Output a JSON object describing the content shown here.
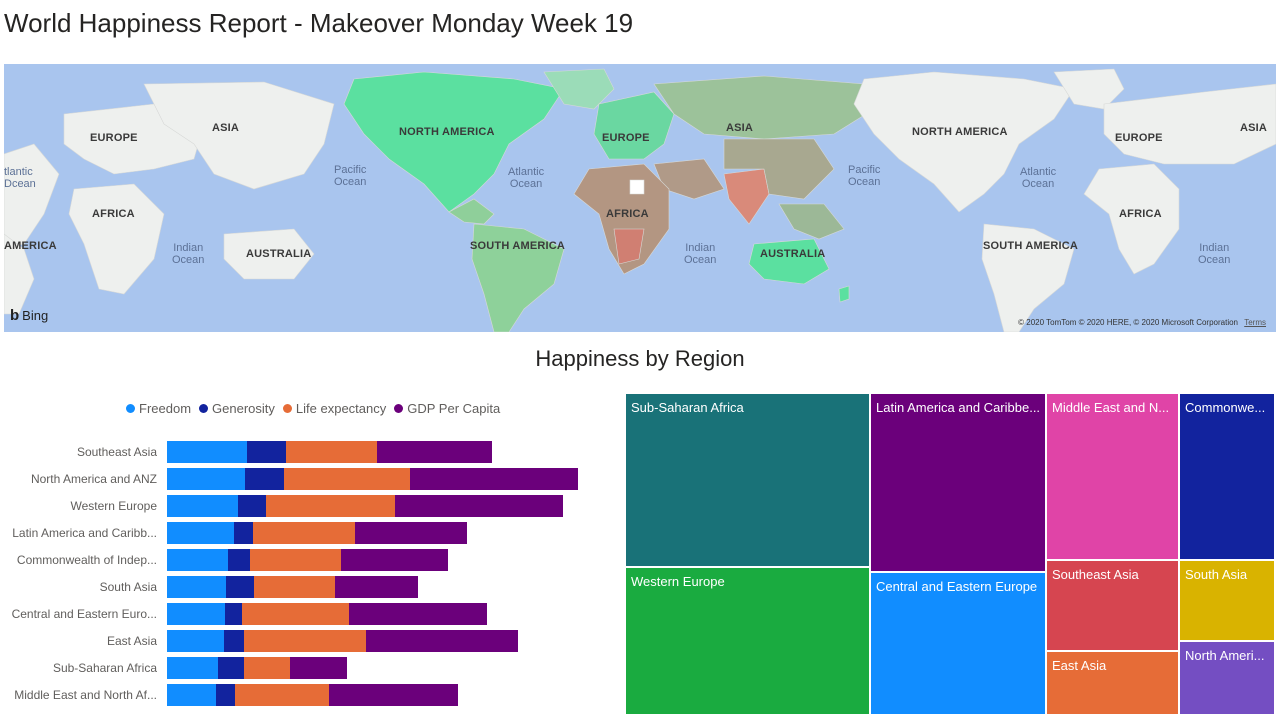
{
  "report": {
    "title": "World Happiness Report - Makeover Monday Week 19"
  },
  "map": {
    "labels": {
      "europe_left": "EUROPE",
      "asia_left": "ASIA",
      "africa_left": "AFRICA",
      "america_left": "AMERICA",
      "australia_left": "AUSTRALIA",
      "north_america": "NORTH AMERICA",
      "europe_center": "EUROPE",
      "asia_center": "ASIA",
      "africa_center": "AFRICA",
      "south_america": "SOUTH AMERICA",
      "australia_center": "AUSTRALIA",
      "north_america_right": "NORTH AMERICA",
      "europe_right": "EUROPE",
      "asia_right": "ASIA",
      "africa_right": "AFRICA",
      "south_america_right": "SOUTH AMERICA"
    },
    "oceans": {
      "atlantic_left_1": "tlantic",
      "atlantic_left_2": "Dcean",
      "pacific_left_1": "Pacific",
      "pacific_left_2": "Ocean",
      "indian_left_1": "Indian",
      "indian_left_2": "Ocean",
      "atlantic_center_1": "Atlantic",
      "atlantic_center_2": "Ocean",
      "indian_center_1": "Indian",
      "indian_center_2": "Ocean",
      "pacific_right_1": "Pacific",
      "pacific_right_2": "Ocean",
      "atlantic_right_1": "Atlantic",
      "atlantic_right_2": "Ocean",
      "indian_right_1": "Indian",
      "indian_right_2": "Ocean"
    },
    "brand": "Bing",
    "attribution": "© 2020 TomTom © 2020 HERE, © 2020 Microsoft Corporation",
    "terms": "Terms",
    "colors": {
      "ocean": "#a9c5ee",
      "land": "#eef0ee",
      "happy": "#5be0a0",
      "mid": "#9cc29a",
      "unhappy": "#d98a7a"
    }
  },
  "section": {
    "title": "Happiness by Region"
  },
  "chart_data": [
    {
      "type": "bar",
      "orientation": "horizontal",
      "stacked": true,
      "title": "",
      "legend": {
        "placement": "top"
      },
      "series": [
        {
          "name": "Freedom",
          "color": "#118dff"
        },
        {
          "name": "Generosity",
          "color": "#12239e"
        },
        {
          "name": "Life expectancy",
          "color": "#e66c37"
        },
        {
          "name": "GDP Per Capita",
          "color": "#6b007b"
        }
      ],
      "rows": [
        {
          "label": "Southeast Asia",
          "values": [
            0.55,
            0.27,
            0.63,
            0.79
          ]
        },
        {
          "label": "North America and ANZ",
          "values": [
            0.54,
            0.27,
            0.87,
            1.16
          ]
        },
        {
          "label": "Western Europe",
          "values": [
            0.49,
            0.19,
            0.89,
            1.16
          ]
        },
        {
          "label": "Latin America and Caribb...",
          "values": [
            0.46,
            0.13,
            0.7,
            0.77
          ]
        },
        {
          "label": "Commonwealth of Indep...",
          "values": [
            0.42,
            0.15,
            0.63,
            0.74
          ]
        },
        {
          "label": "South Asia",
          "values": [
            0.41,
            0.19,
            0.56,
            0.57
          ]
        },
        {
          "label": "Central and Eastern Euro...",
          "values": [
            0.4,
            0.12,
            0.74,
            0.95
          ]
        },
        {
          "label": "East Asia",
          "values": [
            0.39,
            0.14,
            0.84,
            1.05
          ]
        },
        {
          "label": "Sub-Saharan Africa",
          "values": [
            0.35,
            0.18,
            0.32,
            0.39
          ]
        },
        {
          "label": "Middle East and North Af...",
          "values": [
            0.34,
            0.13,
            0.65,
            0.89
          ]
        }
      ]
    },
    {
      "type": "treemap",
      "title": "",
      "items": [
        {
          "label": "Sub-Saharan Africa",
          "color": "#197278",
          "value": 39
        },
        {
          "label": "Western Europe",
          "color": "#1aab40",
          "value": 21
        },
        {
          "label": "Latin America and Caribbe...",
          "color": "#6b007b",
          "value": 22
        },
        {
          "label": "Central and Eastern Europe",
          "color": "#118dff",
          "value": 17
        },
        {
          "label": "Middle East and N...",
          "color": "#e044a7",
          "value": 17
        },
        {
          "label": "Southeast Asia",
          "color": "#d64550",
          "value": 9
        },
        {
          "label": "East Asia",
          "color": "#e66c37",
          "value": 6
        },
        {
          "label": "Commonwe...",
          "color": "#12239e",
          "value": 12
        },
        {
          "label": "South Asia",
          "color": "#d9b300",
          "value": 6
        },
        {
          "label": "North Ameri...",
          "color": "#744ec2",
          "value": 4
        }
      ]
    }
  ]
}
